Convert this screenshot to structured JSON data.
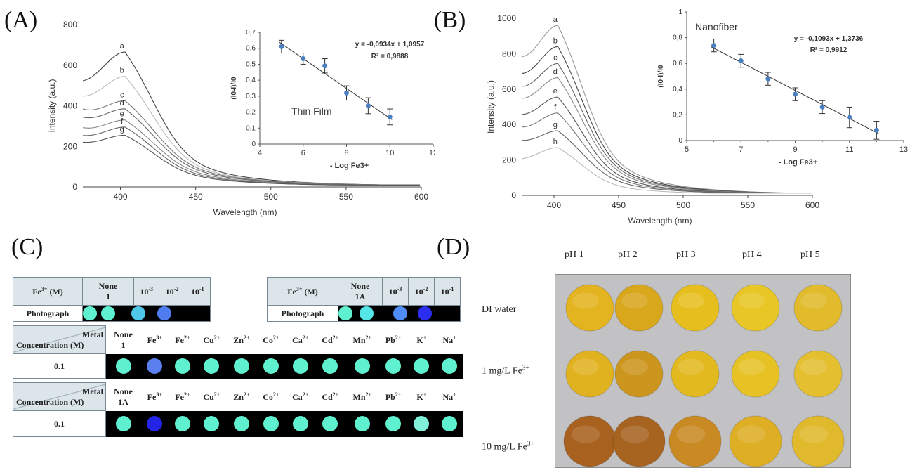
{
  "panel_labels": [
    "(A)",
    "(B)",
    "(C)",
    "(D)"
  ],
  "chart_data": [
    {
      "id": "A-main",
      "type": "line",
      "xlabel": "Wavelength (nm)",
      "ylabel": "Intensity (a.u.)",
      "xlim": [
        375,
        600
      ],
      "ylim": [
        0,
        800
      ],
      "xticks": [
        400,
        450,
        500,
        550,
        600
      ],
      "yticks": [
        0,
        200,
        400,
        600,
        800
      ],
      "series": [
        {
          "name": "a",
          "peak": 665,
          "start": 440
        },
        {
          "name": "b",
          "peak": 545,
          "start": 390
        },
        {
          "name": "c",
          "peak": 425,
          "start": 360
        },
        {
          "name": "d",
          "peak": 385,
          "start": 320
        },
        {
          "name": "e",
          "peak": 330,
          "start": 270
        },
        {
          "name": "f",
          "peak": 295,
          "start": 230
        },
        {
          "name": "g",
          "peak": 255,
          "start": 200
        }
      ]
    },
    {
      "id": "A-inset",
      "type": "scatter",
      "xlabel": "- Log Fe3+",
      "ylabel": "(I0-I)/I0",
      "xlim": [
        4,
        12
      ],
      "ylim": [
        0,
        0.7
      ],
      "xticks": [
        "4",
        "6",
        "8",
        "10",
        "12"
      ],
      "yticks": [
        "0",
        "0,1",
        "0,2",
        "0,3",
        "0,4",
        "0,5",
        "0,6",
        "0,7"
      ],
      "x": [
        5,
        6,
        7,
        8,
        9,
        10
      ],
      "y": [
        0.61,
        0.535,
        0.49,
        0.32,
        0.24,
        0.17
      ],
      "err": [
        0.04,
        0.035,
        0.045,
        0.045,
        0.05,
        0.05
      ],
      "fit": {
        "slope": -0.0934,
        "intercept": 1.0957
      },
      "equation": "y = -0,0934x + 1,0957",
      "r2": "R² = 0,9888",
      "annotation": "Thin Film"
    },
    {
      "id": "B-main",
      "type": "line",
      "xlabel": "Wavelength (nm)",
      "ylabel": "Intensity (a.u.)",
      "xlim": [
        375,
        600
      ],
      "ylim": [
        0,
        1000
      ],
      "xticks": [
        400,
        450,
        500,
        550,
        600
      ],
      "yticks": [
        0,
        200,
        400,
        600,
        800,
        1000
      ],
      "series": [
        {
          "name": "a",
          "peak": 960,
          "start": 680
        },
        {
          "name": "b",
          "peak": 840,
          "start": 600
        },
        {
          "name": "c",
          "peak": 745,
          "start": 540
        },
        {
          "name": "d",
          "peak": 665,
          "start": 480
        },
        {
          "name": "e",
          "peak": 555,
          "start": 400
        },
        {
          "name": "f",
          "peak": 465,
          "start": 340
        },
        {
          "name": "g",
          "peak": 365,
          "start": 280
        },
        {
          "name": "h",
          "peak": 270,
          "start": 170
        }
      ]
    },
    {
      "id": "B-inset",
      "type": "scatter",
      "xlabel": "- Log Fe3+",
      "ylabel": "(I0-I)/I0",
      "xlim": [
        5,
        13
      ],
      "ylim": [
        0,
        1
      ],
      "xticks": [
        "5",
        "7",
        "9",
        "11",
        "13",
        "6",
        "8",
        "10",
        "12"
      ],
      "yticks": [
        "0",
        "0,2",
        "0,4",
        "0,6",
        "0,8",
        "1"
      ],
      "x": [
        6,
        7,
        8,
        9,
        10,
        11,
        12
      ],
      "y": [
        0.74,
        0.62,
        0.48,
        0.36,
        0.26,
        0.18,
        0.08
      ],
      "err": [
        0.05,
        0.05,
        0.05,
        0.05,
        0.05,
        0.08,
        0.07
      ],
      "fit": {
        "slope": -0.1093,
        "intercept": 1.3736
      },
      "equation": "y = -0,1093x + 1,3736",
      "r2": "R² = 0,9912",
      "annotation": "Nanofiber"
    }
  ],
  "tables": {
    "fe_header": "Fe",
    "fe_sup": "3+",
    "fe_unit": " (M)",
    "photograph": "Photograph",
    "none1": "None",
    "none1_sub": "1",
    "none1a_sub": "1A",
    "conc": [
      "10",
      "10",
      "10"
    ],
    "conc_sup": [
      "-3",
      "-2",
      "-1"
    ],
    "metal": "Metal",
    "concentration": "Concentration (M)",
    "value": "0.1",
    "ions": [
      "Fe",
      "Fe",
      "Cu",
      "Zn",
      "Co",
      "Ca",
      "Cd",
      "Mn",
      "Pb",
      "K",
      "Na"
    ],
    "ion_sup": [
      "3+",
      "2+",
      "2+",
      "2+",
      "2+",
      "2+",
      "2+",
      "2+",
      "2+",
      "+",
      "+"
    ],
    "colors": {
      "cyan": "#5ff0d0",
      "t1_row": [
        "#5ff0d0",
        "#5ff0d0",
        "#4fc7e8",
        "#4f7cf0"
      ],
      "t2_row": [
        "#5ff0d0",
        "#54e6e6",
        "#4f8cf5",
        "#2b2ef0"
      ],
      "t3_row": [
        "#5ff0d0",
        "#5c7ff0",
        "#5ff0d0",
        "#5ff0d0",
        "#5ff0d0",
        "#5ff0d0",
        "#5ff0d0",
        "#5ff0d0",
        "#5ff0d0",
        "#5ff0d0",
        "#5ff0d0",
        "#5ff0d0"
      ],
      "t4_row": [
        "#5ff0d0",
        "#2424e8",
        "#5ff0d0",
        "#5ff0d0",
        "#5ff0d0",
        "#5ff0d0",
        "#5ff0d0",
        "#5ff0d0",
        "#5ff0d0",
        "#5ff0d0",
        "#80f0d8",
        "#5ff0d0"
      ]
    }
  },
  "photo": {
    "ph_labels": [
      "pH 1",
      "pH 2",
      "pH 3",
      "pH 4",
      "pH 5"
    ],
    "row_labels": [
      "DI water",
      "1 mg/L Fe",
      "10 mg/L Fe"
    ],
    "row_sup": "3+",
    "colors": [
      [
        "#e3b320",
        "#d9a71c",
        "#e6bf1f",
        "#e8c625",
        "#e1bb2b"
      ],
      [
        "#e1b21f",
        "#cc961e",
        "#e3b920",
        "#e6c225",
        "#e4c030"
      ],
      [
        "#a8611e",
        "#a66420",
        "#c98a24",
        "#deae25",
        "#e0b92c"
      ]
    ]
  }
}
